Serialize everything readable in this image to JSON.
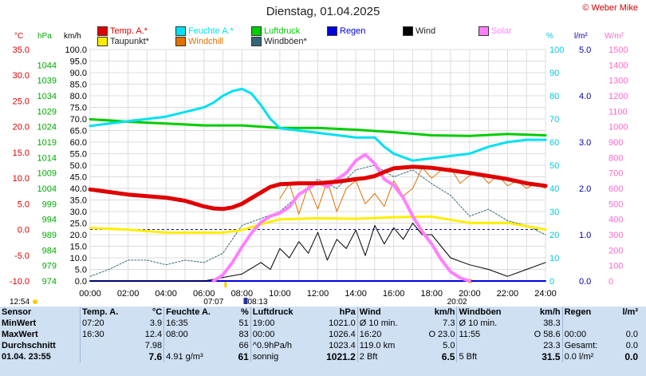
{
  "header": {
    "title": "Dienstag, 01.04.2025",
    "copyright": "© Weber Mike"
  },
  "legend": [
    {
      "label": "Temp. A.*",
      "color": "#e00000"
    },
    {
      "label": "Feuchte A.*",
      "color": "#00e0f0"
    },
    {
      "label": "Luftdruck",
      "color": "#00cc00"
    },
    {
      "label": "Regen",
      "color": "#0000dd"
    },
    {
      "label": "Wind",
      "color": "#000000"
    },
    {
      "label": "Solar",
      "color": "#ff80ff"
    },
    {
      "label": "Taupunkt*",
      "color": "#ffee00"
    },
    {
      "label": "Windchill",
      "color": "#e07000"
    },
    {
      "label": "Windböen*",
      "color": "#336677"
    }
  ],
  "axis_units": {
    "temp": "°C",
    "pressure": "hPa",
    "wind": "km/h",
    "humidity": "%",
    "rain": "l/m²",
    "solar": "W/m²"
  },
  "sun_times": {
    "left_time": "12:54",
    "sunrise": "07:07",
    "solar_noon": "08:13",
    "sunset": "20:02"
  },
  "chart_data": {
    "type": "line",
    "title": "Dienstag, 01.04.2025",
    "x_ticks": [
      "00:00",
      "02:00",
      "04:00",
      "06:00",
      "08:00",
      "10:00",
      "12:00",
      "14:00",
      "16:00",
      "18:00",
      "20:00",
      "22:00",
      "24:00"
    ],
    "axes": {
      "temp_c": {
        "range": [
          -10,
          35
        ],
        "ticks": [
          "35.0",
          "30.0",
          "25.0",
          "20.0",
          "15.0",
          "10.0",
          "5.0",
          "0.0",
          "-5.0",
          "-10.0"
        ],
        "color": "#dd0000"
      },
      "pressure_hpa": {
        "range": [
          974,
          1049
        ],
        "ticks": [
          "1044",
          "1039",
          "1034",
          "1029",
          "1024",
          "1019",
          "1014",
          "1009",
          "1004",
          "999",
          "994",
          "989",
          "984",
          "979",
          "974"
        ],
        "color": "#00aa00"
      },
      "wind_kmh": {
        "range": [
          0,
          100
        ],
        "ticks": [
          "100.0",
          "95.0",
          "90.0",
          "85.0",
          "80.0",
          "75.0",
          "70.0",
          "65.0",
          "60.0",
          "55.0",
          "50.0",
          "45.0",
          "40.0",
          "35.0",
          "30.0",
          "25.0",
          "20.0",
          "15.0",
          "10.0",
          "5.0",
          "0.0"
        ],
        "color": "#000000"
      },
      "humidity_pct": {
        "range": [
          0,
          100
        ],
        "ticks": [
          "100",
          "90",
          "80",
          "70",
          "60",
          "50",
          "40",
          "30",
          "20",
          "10",
          "0"
        ],
        "color": "#00c8e0"
      },
      "rain_lm2": {
        "range": [
          0,
          5
        ],
        "ticks": [
          "5.0",
          "4.0",
          "3.0",
          "2.0",
          "1.0",
          "0.0"
        ],
        "color": "#0000aa"
      },
      "solar_wm2": {
        "range": [
          0,
          1500
        ],
        "ticks": [
          "1500",
          "1400",
          "1300",
          "1200",
          "1100",
          "1000",
          "900",
          "800",
          "700",
          "600",
          "500",
          "400",
          "300",
          "200",
          "100",
          "0"
        ],
        "color": "#ff66cc"
      }
    },
    "series": [
      {
        "name": "Temp. A.*",
        "axis": "temp_c",
        "x": [
          0,
          1,
          2,
          3,
          4,
          5,
          6,
          6.5,
          7,
          7.5,
          8,
          8.5,
          9,
          9.5,
          10,
          11,
          12,
          13,
          14,
          14.5,
          15,
          15.5,
          16,
          17,
          18,
          19,
          20,
          21,
          22,
          23,
          24
        ],
        "y": [
          7.8,
          7.3,
          6.8,
          6.5,
          6.2,
          5.6,
          4.5,
          4.1,
          4.0,
          4.3,
          5.0,
          6.1,
          7.2,
          8.3,
          8.8,
          9.0,
          9.0,
          9.3,
          9.8,
          10.0,
          10.4,
          11.2,
          11.9,
          12.2,
          12.0,
          11.5,
          11.0,
          10.4,
          9.8,
          9.0,
          8.5
        ]
      },
      {
        "name": "Taupunkt*",
        "axis": "temp_c",
        "x": [
          0,
          2,
          4,
          6,
          7,
          8,
          9,
          10,
          12,
          14,
          16,
          18,
          20,
          22,
          24
        ],
        "y": [
          0.3,
          0.0,
          -0.6,
          -0.6,
          -0.6,
          -0.1,
          1.0,
          2.0,
          2.2,
          2.1,
          2.4,
          2.5,
          1.3,
          1.3,
          0.0
        ]
      },
      {
        "name": "Luftdruck",
        "axis": "pressure_hpa",
        "x": [
          0,
          2,
          4,
          6,
          8,
          10,
          12,
          14,
          16,
          18,
          20,
          22,
          24
        ],
        "y": [
          1026.4,
          1025.6,
          1025.0,
          1024.4,
          1024.4,
          1023.6,
          1023.6,
          1023.0,
          1022.2,
          1021.2,
          1021.0,
          1021.6,
          1021.2
        ]
      },
      {
        "name": "Feuchte A.*",
        "axis": "humidity_pct",
        "x": [
          0,
          1,
          2,
          3,
          4,
          5,
          6,
          6.5,
          7,
          7.5,
          8,
          8.5,
          9,
          9.5,
          10,
          11,
          12,
          13,
          14,
          15,
          15.5,
          16,
          17,
          18,
          19,
          20,
          21,
          22,
          23,
          24
        ],
        "y": [
          67,
          68,
          69,
          70,
          71,
          73,
          75,
          77,
          80,
          82,
          83,
          81,
          76,
          70,
          66,
          65,
          64,
          63,
          62,
          62,
          58,
          55,
          52,
          53,
          54,
          55,
          58,
          60,
          61,
          61
        ]
      },
      {
        "name": "Windchill",
        "axis": "temp_c",
        "x": [
          10,
          10.5,
          11,
          11.5,
          12,
          12.5,
          13,
          13.5,
          14,
          14.5,
          15,
          15.5,
          16,
          16.5,
          17,
          17.5,
          18,
          18.5,
          19,
          19.5,
          20,
          20.5,
          21,
          21.5,
          22,
          22.5,
          23,
          23.5,
          24
        ],
        "y": [
          6.0,
          9.0,
          3.0,
          8.5,
          4.0,
          9.5,
          3.5,
          8.0,
          9.5,
          5.0,
          7.0,
          4.5,
          9.5,
          6.5,
          8.0,
          12.0,
          10.0,
          11.5,
          12.0,
          9.0,
          10.5,
          11.0,
          9.0,
          10.5,
          8.5,
          9.5,
          8.0,
          9.0,
          8.0
        ]
      },
      {
        "name": "Wind",
        "axis": "wind_kmh",
        "x": [
          0,
          2,
          4,
          6,
          8,
          9,
          9.5,
          10,
          10.5,
          11,
          11.5,
          12,
          12.5,
          13,
          13.5,
          14,
          14.5,
          15,
          15.5,
          16,
          16.5,
          17,
          17.5,
          18,
          19,
          20,
          21,
          22,
          23,
          24
        ],
        "y": [
          0,
          0,
          0,
          0,
          3,
          8,
          5,
          14,
          10,
          17,
          12,
          21,
          9,
          18,
          14,
          22,
          11,
          24,
          16,
          23,
          18,
          25,
          20,
          20,
          10,
          7,
          5,
          2,
          5,
          8
        ]
      },
      {
        "name": "Windböen*",
        "axis": "wind_kmh",
        "x": [
          0,
          1,
          2,
          3,
          4,
          5,
          6,
          7,
          8,
          9,
          10,
          11,
          12,
          13,
          14,
          15,
          16,
          17,
          18,
          19,
          20,
          21,
          22,
          23,
          24
        ],
        "y": [
          2,
          5,
          9,
          9,
          7,
          9,
          8,
          12,
          24,
          27,
          30,
          37,
          44,
          40,
          48,
          50,
          45,
          48,
          42,
          37,
          28,
          31,
          26,
          24,
          20
        ]
      },
      {
        "name": "Solar",
        "axis": "solar_wm2",
        "x": [
          6.5,
          7,
          7.5,
          8,
          8.5,
          9,
          9.5,
          10,
          10.5,
          11,
          11.5,
          12,
          12.5,
          13,
          13.5,
          14,
          14.5,
          15,
          15.5,
          16,
          16.5,
          17,
          17.5,
          18,
          18.5,
          19,
          19.5,
          20
        ],
        "y": [
          0,
          40,
          120,
          220,
          310,
          380,
          420,
          440,
          480,
          560,
          600,
          640,
          610,
          660,
          700,
          780,
          820,
          760,
          660,
          620,
          540,
          420,
          320,
          240,
          140,
          60,
          20,
          0
        ]
      },
      {
        "name": "Regen",
        "axis": "rain_lm2",
        "x": [
          0,
          24
        ],
        "y": [
          0,
          0
        ]
      }
    ]
  },
  "stats": {
    "headers": [
      "Sensor",
      "Temp. A.",
      "°C",
      "Feuchte A.",
      "%",
      "Luftdruck",
      "hPa",
      "Wind",
      "km/h",
      "Windböen",
      "km/h",
      "Regen",
      "l/m²"
    ],
    "rows": [
      [
        "MinWert",
        "07:20",
        "3.9",
        "16:35",
        "51",
        "19:00",
        "1021.0",
        "Ø 10 min.",
        "7.3",
        "Ø 10 min.",
        "38.3",
        "",
        ""
      ],
      [
        "MaxWert",
        "16:30",
        "12.4",
        "08:00",
        "83",
        "00:00",
        "1026.4",
        "16:20",
        "O 23.0",
        "11:55",
        "O 58.6",
        "00:00",
        "0.0"
      ],
      [
        "Durchschnitt",
        "",
        "7.98",
        "",
        "66",
        "^0.9hPa/h",
        "1023.4",
        "119.0 km",
        "5.0",
        "",
        "23.3",
        "Gesamt:",
        "0.0"
      ],
      [
        "01.04. 23:55",
        "",
        "7.6",
        "4.91 g/m³",
        "61",
        "sonnig",
        "1021.2",
        "2 Bft",
        "6.5",
        "5 Bft",
        "31.5",
        "0.0 l/m²",
        "0.0"
      ]
    ]
  }
}
